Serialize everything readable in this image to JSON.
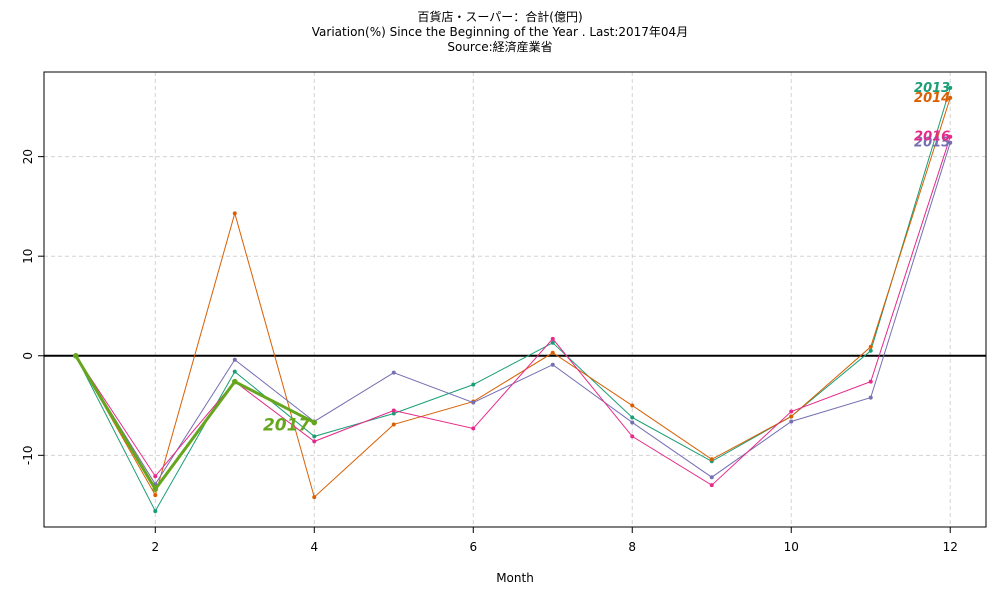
{
  "chart_data": {
    "type": "line",
    "title": "百貨店・スーパー：合計(億円)",
    "subtitle": "Variation(%) Since the Beginning of the Year . Last:2017年04月",
    "source": "Source:経済産業省",
    "xlabel": "Month",
    "ylabel": "",
    "xlim": [
      0.6,
      12.45
    ],
    "ylim": [
      -17.2,
      28.5
    ],
    "xticks": [
      2,
      4,
      6,
      8,
      10,
      12
    ],
    "yticks": [
      -10,
      0,
      10,
      20
    ],
    "grid": true,
    "reference_line": 0,
    "series": [
      {
        "name": "2013",
        "color": "#1b9e77",
        "x": [
          1,
          2,
          3,
          4,
          5,
          6,
          7,
          8,
          9,
          10,
          11,
          12
        ],
        "values": [
          0,
          -15.6,
          -1.6,
          -8.1,
          -5.8,
          -2.9,
          1.3,
          -6.2,
          -10.6,
          -6.1,
          0.5,
          26.9
        ]
      },
      {
        "name": "2014",
        "color": "#d95f02",
        "x": [
          1,
          2,
          3,
          4,
          5,
          6,
          7,
          8,
          9,
          10,
          11,
          12
        ],
        "values": [
          0,
          -14.0,
          14.3,
          -14.2,
          -6.9,
          -4.6,
          0.3,
          -5.0,
          -10.4,
          -6.1,
          0.9,
          25.9
        ]
      },
      {
        "name": "2015",
        "color": "#7570b3",
        "x": [
          1,
          2,
          3,
          4,
          5,
          6,
          7,
          8,
          9,
          10,
          11,
          12
        ],
        "values": [
          0,
          -12.9,
          -0.4,
          -6.6,
          -1.7,
          -4.7,
          -0.9,
          -6.7,
          -12.2,
          -6.6,
          -4.2,
          21.4
        ]
      },
      {
        "name": "2016",
        "color": "#e7298a",
        "x": [
          1,
          2,
          3,
          4,
          5,
          6,
          7,
          8,
          9,
          10,
          11,
          12
        ],
        "values": [
          0,
          -12.1,
          -2.6,
          -8.6,
          -5.5,
          -7.3,
          1.7,
          -8.1,
          -13.0,
          -5.6,
          -2.6,
          22.0
        ]
      },
      {
        "name": "2017",
        "color": "#66a61e",
        "x": [
          1,
          2,
          3,
          4
        ],
        "values": [
          0,
          -13.4,
          -2.6,
          -6.7
        ]
      }
    ]
  }
}
